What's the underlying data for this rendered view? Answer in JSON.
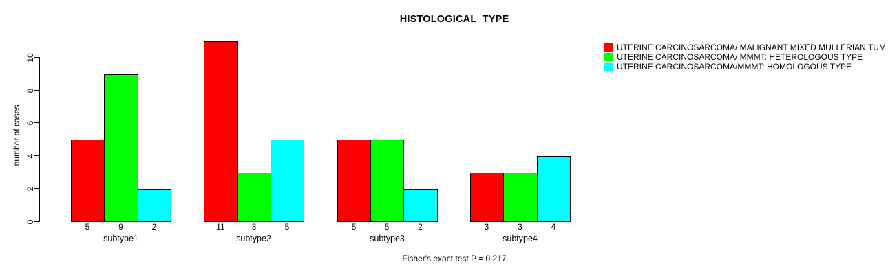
{
  "title": "HISTOLOGICAL_TYPE",
  "y_axis": {
    "label": "number of cases",
    "ticks": [
      0,
      2,
      4,
      6,
      8,
      10
    ]
  },
  "legend": [
    {
      "label": "UTERINE CARCINOSARCOMA/ MALIGNANT MIXED MULLERIAN TUM",
      "color": "#ff0000"
    },
    {
      "label": "UTERINE CARCINOSARCOMA/ MMMT: HETEROLOGOUS TYPE",
      "color": "#00ff00"
    },
    {
      "label": "UTERINE CARCINOSARCOMA/MMMT: HOMOLOGOUS TYPE",
      "color": "#00ffff"
    }
  ],
  "chart_data": {
    "type": "bar",
    "grouped": true,
    "title": "HISTOLOGICAL_TYPE",
    "xlabel": "",
    "ylabel": "number of cases",
    "ylim": [
      0,
      11
    ],
    "yticks": [
      0,
      2,
      4,
      6,
      8,
      10
    ],
    "grid": false,
    "legend_position": "top-right",
    "bar_value_labels": true,
    "categories": [
      "subtype1",
      "subtype2",
      "subtype3",
      "subtype4"
    ],
    "series": [
      {
        "name": "UTERINE CARCINOSARCOMA/ MALIGNANT MIXED MULLERIAN TUM",
        "color": "#ff0000",
        "values": [
          5,
          11,
          5,
          3
        ]
      },
      {
        "name": "UTERINE CARCINOSARCOMA/ MMMT: HETEROLOGOUS TYPE",
        "color": "#00ff00",
        "values": [
          9,
          3,
          5,
          3
        ]
      },
      {
        "name": "UTERINE CARCINOSARCOMA/MMMT: HOMOLOGOUS TYPE",
        "color": "#00ffff",
        "values": [
          2,
          5,
          2,
          4
        ]
      }
    ],
    "annotation": "Fisher's exact test P = 0.217"
  }
}
